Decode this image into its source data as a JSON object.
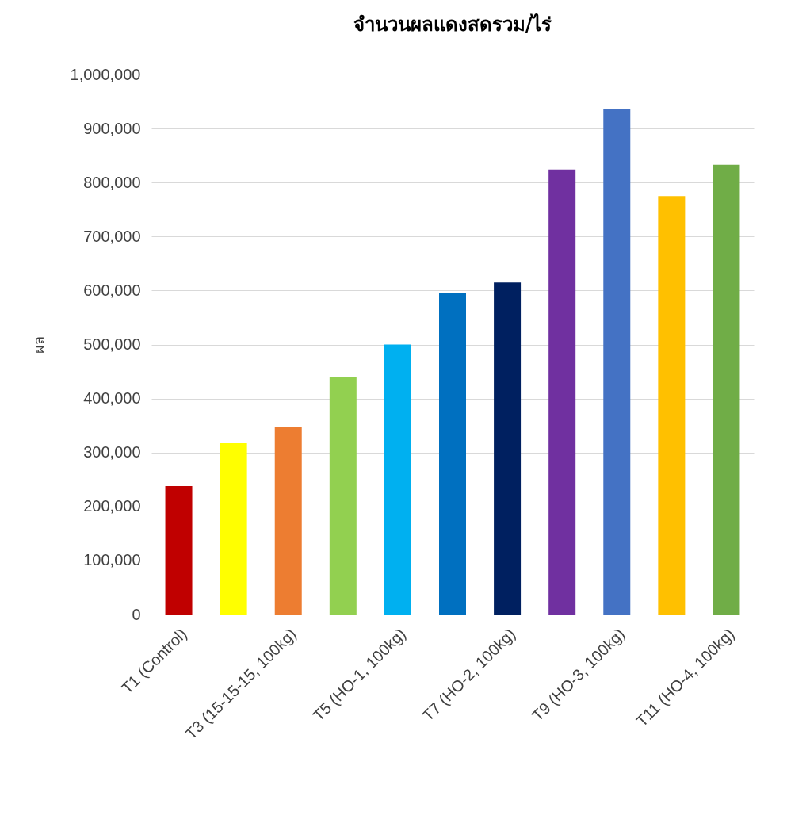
{
  "chart_data": {
    "type": "bar",
    "title": "จำนวนผลแดงสดรวม/ไร่",
    "ylabel": "ผล",
    "categories": [
      "T1 (Control)",
      null,
      "T3 (15-15-15, 100kg)",
      null,
      "T5 (HO-1, 100kg)",
      null,
      "T7 (HO-2, 100kg)",
      null,
      "T9 (HO-3, 100kg)",
      null,
      "T11 (HO-4, 100kg)"
    ],
    "values": [
      238000,
      317000,
      347000,
      439000,
      500000,
      595000,
      615000,
      824000,
      937000,
      775000,
      833000
    ],
    "colors": [
      "#c00000",
      "#ffff00",
      "#ed7d31",
      "#92d050",
      "#00b0f0",
      "#0070c0",
      "#002060",
      "#7030a0",
      "#4472c4",
      "#ffc000",
      "#70ad47"
    ],
    "ylim": [
      0,
      1000000
    ],
    "yticks": [
      0,
      {
        "value": 100000,
        "label": "100,000"
      },
      {
        "value": 200000,
        "label": "200,000"
      },
      {
        "value": 300000,
        "label": "300,000"
      },
      {
        "value": 400000,
        "label": "400,000"
      },
      {
        "value": 500000,
        "label": "500,000"
      },
      {
        "value": 600000,
        "label": "600,000"
      },
      {
        "value": 700000,
        "label": "700,000"
      },
      {
        "value": 800000,
        "label": "800,000"
      },
      {
        "value": 900000,
        "label": "900,000"
      },
      {
        "value": 1000000,
        "label": "1,000,000"
      }
    ],
    "grid": "y",
    "legend": false
  }
}
